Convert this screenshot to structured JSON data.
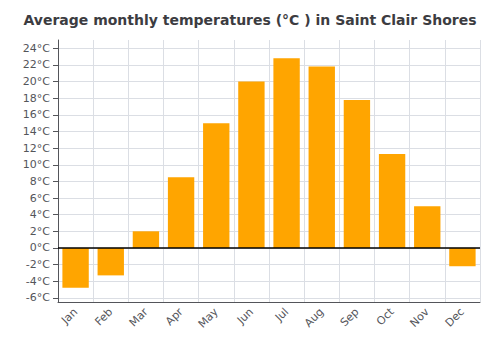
{
  "chart_data": {
    "type": "bar",
    "title": "Average monthly temperatures (°C ) in Saint Clair Shores",
    "categories": [
      "Jan",
      "Feb",
      "Mar",
      "Apr",
      "May",
      "Jun",
      "Jul",
      "Aug",
      "Sep",
      "Oct",
      "Nov",
      "Dec"
    ],
    "values": [
      -4.8,
      -3.3,
      2.0,
      8.5,
      15.0,
      20.0,
      22.8,
      21.8,
      17.8,
      11.3,
      5.0,
      -2.2
    ],
    "color": "#FFA500",
    "ylim": [
      -6.5,
      25
    ],
    "yticks": [
      {
        "value": -6,
        "label": "-6°C"
      },
      {
        "value": -4,
        "label": "-4°C"
      },
      {
        "value": -2,
        "label": "-2°C"
      },
      {
        "value": 0,
        "label": "0°C"
      },
      {
        "value": 2,
        "label": "2°C"
      },
      {
        "value": 4,
        "label": "4°C"
      },
      {
        "value": 6,
        "label": "6°C"
      },
      {
        "value": 8,
        "label": "8°C"
      },
      {
        "value": 10,
        "label": "10°C"
      },
      {
        "value": 12,
        "label": "12°C"
      },
      {
        "value": 14,
        "label": "14°C"
      },
      {
        "value": 16,
        "label": "16°C"
      },
      {
        "value": 18,
        "label": "18°C"
      },
      {
        "value": 20,
        "label": "20°C"
      },
      {
        "value": 22,
        "label": "22°C"
      },
      {
        "value": 24,
        "label": "24°C"
      }
    ],
    "grid": true
  }
}
